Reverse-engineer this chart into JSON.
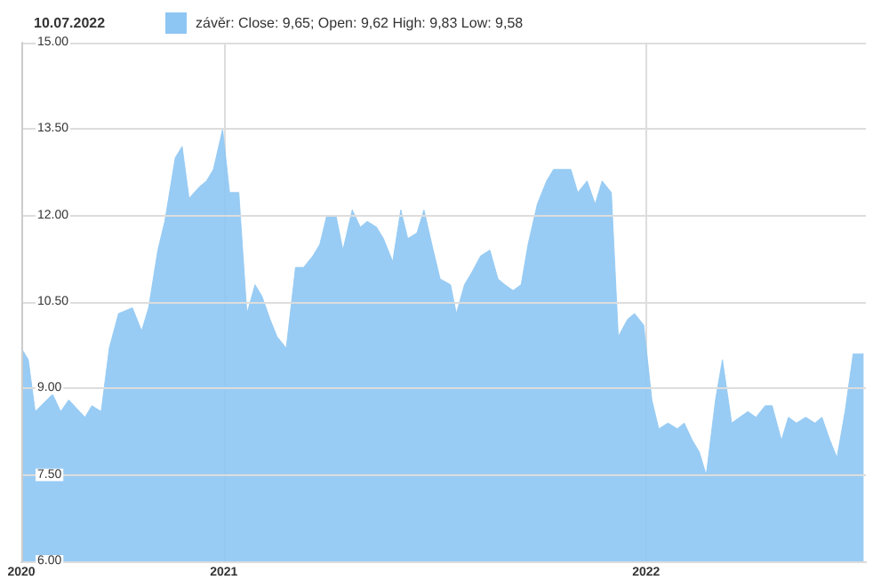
{
  "chart_data": {
    "type": "area",
    "title": "10.07.2022",
    "x": [
      "2020-07-10",
      "2020-07-16",
      "2020-07-22",
      "2020-08-06",
      "2020-08-13",
      "2020-08-20",
      "2020-09-03",
      "2020-09-09",
      "2020-09-17",
      "2020-09-24",
      "2020-10-02",
      "2020-10-14",
      "2020-10-22",
      "2020-10-28",
      "2020-11-05",
      "2020-11-11",
      "2020-11-20",
      "2020-11-26",
      "2020-12-02",
      "2020-12-11",
      "2020-12-17",
      "2020-12-23",
      "2020-12-31",
      "2021-01-06",
      "2021-01-14",
      "2021-01-21",
      "2021-01-28",
      "2021-02-03",
      "2021-02-10",
      "2021-02-16",
      "2021-02-24",
      "2021-03-04",
      "2021-03-11",
      "2021-03-19",
      "2021-03-25",
      "2021-03-31",
      "2021-04-08",
      "2021-04-14",
      "2021-04-22",
      "2021-04-29",
      "2021-05-05",
      "2021-05-13",
      "2021-05-19",
      "2021-05-27",
      "2021-06-03",
      "2021-06-09",
      "2021-06-17",
      "2021-06-23",
      "2021-07-01",
      "2021-07-07",
      "2021-07-16",
      "2021-07-21",
      "2021-07-28",
      "2021-08-03",
      "2021-08-11",
      "2021-08-19",
      "2021-08-26",
      "2021-09-01",
      "2021-09-08",
      "2021-09-15",
      "2021-09-21",
      "2021-09-29",
      "2021-10-07",
      "2021-10-13",
      "2021-10-20",
      "2021-10-28",
      "2021-11-03",
      "2021-11-11",
      "2021-11-18",
      "2021-11-24",
      "2021-12-02",
      "2021-12-08",
      "2021-12-16",
      "2021-12-22",
      "2021-12-30",
      "2022-01-06",
      "2022-01-12",
      "2022-01-20",
      "2022-01-28",
      "2022-02-03",
      "2022-02-10",
      "2022-02-16",
      "2022-02-22",
      "2022-03-02",
      "2022-03-08",
      "2022-03-16",
      "2022-03-23",
      "2022-03-30",
      "2022-04-06",
      "2022-04-14",
      "2022-04-20",
      "2022-04-28",
      "2022-05-04",
      "2022-05-11",
      "2022-05-19",
      "2022-05-27",
      "2022-06-02",
      "2022-06-09",
      "2022-06-15",
      "2022-06-22",
      "2022-06-29",
      "2022-07-08"
    ],
    "series": [
      {
        "name": "závěr: Close: 9,65; Open: 9,62 High: 9,83 Low: 9,58",
        "color": "#8ec6f3",
        "values": [
          9.7,
          9.5,
          8.6,
          8.9,
          8.6,
          8.8,
          8.5,
          8.7,
          8.6,
          9.7,
          10.3,
          10.4,
          10.0,
          10.4,
          11.4,
          11.9,
          13.0,
          13.2,
          12.3,
          12.5,
          12.6,
          12.8,
          13.5,
          12.4,
          12.4,
          10.3,
          10.8,
          10.6,
          10.2,
          9.9,
          9.7,
          11.1,
          11.1,
          11.3,
          11.5,
          12.0,
          12.0,
          11.4,
          12.1,
          11.8,
          11.9,
          11.8,
          11.6,
          11.2,
          12.1,
          11.6,
          11.7,
          12.1,
          11.4,
          10.9,
          10.8,
          10.3,
          10.8,
          11.0,
          11.3,
          11.4,
          10.9,
          10.8,
          10.7,
          10.8,
          11.5,
          12.2,
          12.6,
          12.8,
          12.8,
          12.8,
          12.4,
          12.6,
          12.2,
          12.6,
          12.4,
          9.9,
          10.2,
          10.3,
          10.1,
          8.8,
          8.3,
          8.4,
          8.3,
          8.4,
          8.1,
          7.9,
          7.5,
          8.8,
          9.5,
          8.4,
          8.5,
          8.6,
          8.5,
          8.7,
          8.7,
          8.1,
          8.5,
          8.4,
          8.5,
          8.4,
          8.5,
          8.1,
          7.8,
          8.6,
          9.6,
          9.6
        ]
      }
    ],
    "xlim": [
      "2020-07-10",
      "2022-07-10"
    ],
    "xticks": [
      {
        "value": "2020-07-10",
        "label": "2020"
      },
      "2021",
      "2022"
    ],
    "ylim": [
      6,
      15
    ],
    "yticks": [
      {
        "value": 6,
        "label": "6.00"
      },
      {
        "value": 7.5,
        "label": "7.50"
      },
      {
        "value": 9,
        "label": "9.00"
      },
      {
        "value": 10.5,
        "label": "10.50"
      },
      {
        "value": 12,
        "label": "12.00"
      },
      {
        "value": 13.5,
        "label": "13.50"
      },
      {
        "value": 15,
        "label": "15.00"
      }
    ],
    "grid": true,
    "legend": "top left",
    "marker": "none"
  }
}
